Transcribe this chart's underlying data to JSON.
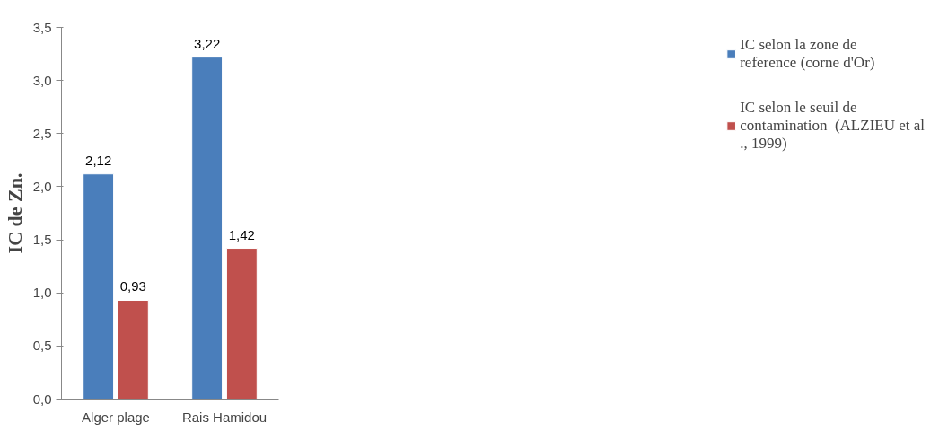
{
  "chart_data": {
    "type": "bar",
    "ylabel": "IC de Zn.",
    "categories": [
      "Alger plage",
      "Rais Hamidou"
    ],
    "series": [
      {
        "name": "IC selon la zone de reference (corne d'Or)",
        "color": "#4a7ebb",
        "values": [
          2.12,
          3.22
        ],
        "value_labels": [
          "2,12",
          "3,22"
        ]
      },
      {
        "name": "IC selon le seuil de contamination  (ALZIEU et al ., 1999)",
        "color": "#c0504d",
        "values": [
          0.93,
          1.42
        ],
        "value_labels": [
          "0,93",
          "1,42"
        ]
      }
    ],
    "ylim": [
      0,
      3.5
    ],
    "yticks": [
      {
        "value": 0,
        "label": "0,0"
      },
      {
        "value": 0.5,
        "label": "0,5"
      },
      {
        "value": 1,
        "label": "1,0"
      },
      {
        "value": 1.5,
        "label": "1,5"
      },
      {
        "value": 2,
        "label": "2,0"
      },
      {
        "value": 2.5,
        "label": "2,5"
      },
      {
        "value": 3,
        "label": "3,0"
      },
      {
        "value": 3.5,
        "label": "3,5"
      }
    ],
    "grid": false,
    "legend": "right"
  }
}
